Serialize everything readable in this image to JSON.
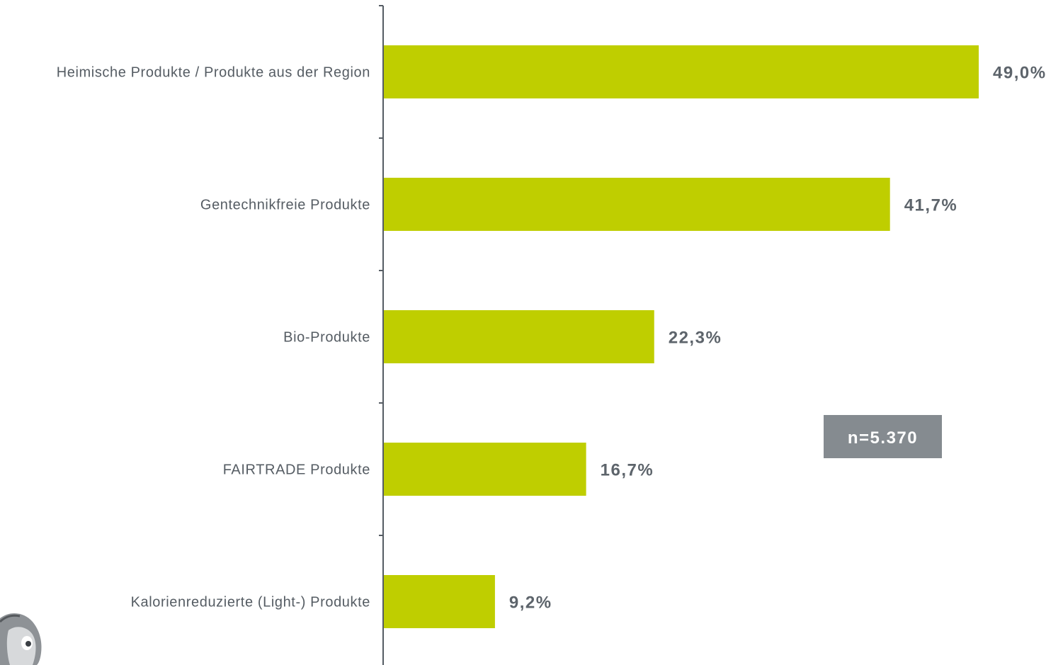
{
  "chart_data": {
    "type": "bar",
    "orientation": "horizontal",
    "categories": [
      "Heimische Produkte / Produkte aus der Region",
      "Gentechnikfreie Produkte",
      "Bio-Produkte",
      "FAIRTRADE Produkte",
      "Kalorienreduzierte (Light-) Produkte"
    ],
    "values": [
      49.0,
      41.7,
      22.3,
      16.7,
      9.2
    ],
    "value_labels": [
      "49,0%",
      "41,7%",
      "22,3%",
      "16,7%",
      "9,2%"
    ],
    "title": "",
    "xlabel": "",
    "ylabel": "",
    "xlim": [
      0,
      56
    ],
    "grid": false,
    "legend": "none",
    "annotation": "n=5.370"
  },
  "colors": {
    "bar": "#bfce00",
    "text": "#555c63",
    "value_text": "#5d646b",
    "axis": "#555c63",
    "badge_bg": "#858b90",
    "badge_text": "#ffffff"
  },
  "icons": {
    "corner_logo": "mascot-face-icon"
  }
}
